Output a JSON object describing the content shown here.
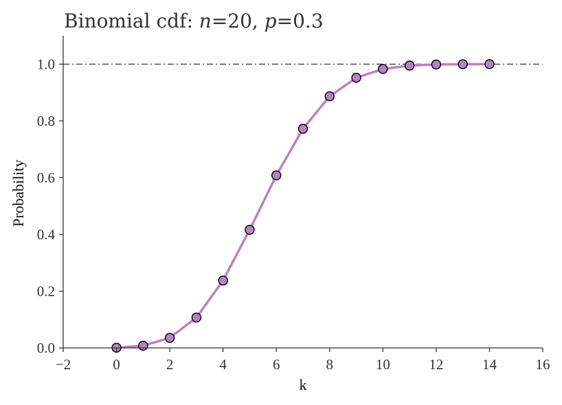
{
  "chart_data": {
    "type": "line",
    "title_parts": [
      {
        "text": "Binomial cdf: ",
        "italic": false
      },
      {
        "text": "n",
        "italic": true
      },
      {
        "text": "=20, ",
        "italic": false
      },
      {
        "text": "p",
        "italic": true
      },
      {
        "text": "=0.3",
        "italic": false
      }
    ],
    "xlabel": "k",
    "ylabel": "Probability",
    "xlim": [
      -2,
      16
    ],
    "ylim": [
      0,
      1.1
    ],
    "xticks": [
      -2,
      0,
      2,
      4,
      6,
      8,
      10,
      12,
      14,
      16
    ],
    "xtick_labels": [
      "−2",
      "0",
      "2",
      "4",
      "6",
      "8",
      "10",
      "12",
      "14",
      "16"
    ],
    "yticks": [
      0.0,
      0.2,
      0.4,
      0.6,
      0.8,
      1.0
    ],
    "ytick_labels": [
      "0.0",
      "0.2",
      "0.4",
      "0.6",
      "0.8",
      "1.0"
    ],
    "grid": false,
    "reference_line": {
      "y": 1.0,
      "style": "dash-dot",
      "color": "#444444"
    },
    "series": [
      {
        "color": "#bf80bf",
        "marker_color": "#b583c0",
        "x": [
          0,
          1,
          2,
          3,
          4,
          5,
          6,
          7,
          8,
          9,
          10,
          11,
          12,
          13,
          14
        ],
        "y": [
          0.0008,
          0.0076,
          0.0355,
          0.1071,
          0.2375,
          0.4164,
          0.608,
          0.7723,
          0.8867,
          0.952,
          0.9829,
          0.9949,
          0.9987,
          0.9997,
          1.0
        ]
      }
    ]
  }
}
